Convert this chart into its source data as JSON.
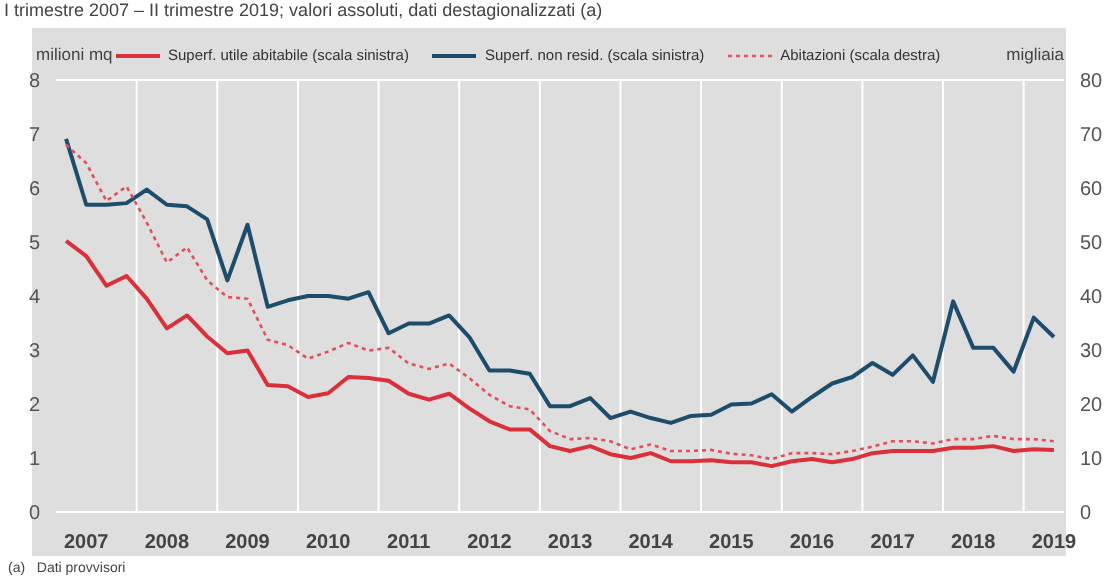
{
  "chart_data": {
    "type": "line",
    "subtitle": "I trimestre 2007 – II trimestre 2019; valori assoluti, dati destagionalizzati (a)",
    "ylabel": "milioni mq",
    "y2label": "migliaia",
    "annotations": [
      "(a)   Dati provvisori"
    ],
    "categories": [
      null,
      "2007",
      null,
      null,
      null,
      "2008",
      null,
      null,
      null,
      "2009",
      null,
      null,
      null,
      "2010",
      null,
      null,
      null,
      "2011",
      null,
      null,
      null,
      "2012",
      null,
      null,
      null,
      "2013",
      null,
      null,
      null,
      "2014",
      null,
      null,
      null,
      "2015",
      null,
      null,
      null,
      "2016",
      null,
      null,
      null,
      "2017",
      null,
      null,
      null,
      "2018",
      null,
      null,
      null,
      "2019"
    ],
    "series": [
      {
        "name": "Superf. utile abitabile (scala sinistra)",
        "color": "#d9303a",
        "line_style": "solid",
        "values": [
          5.02,
          4.74,
          4.19,
          4.37,
          3.95,
          3.4,
          3.64,
          3.25,
          2.94,
          2.99,
          2.35,
          2.33,
          2.13,
          2.2,
          2.5,
          2.48,
          2.43,
          2.19,
          2.08,
          2.19,
          1.92,
          1.68,
          1.53,
          1.53,
          1.22,
          1.13,
          1.22,
          1.07,
          1.0,
          1.09,
          0.94,
          0.94,
          0.96,
          0.92,
          0.92,
          0.85,
          0.94,
          0.98,
          0.92,
          0.98,
          1.09,
          1.13,
          1.13,
          1.13,
          1.19,
          1.19,
          1.22,
          1.13,
          1.16,
          1.15
        ]
      },
      {
        "name": "Superf. non resid. (scala sinistra)",
        "color": "#1e4d6b",
        "line_style": "solid",
        "values": [
          6.91,
          5.69,
          5.69,
          5.72,
          5.97,
          5.69,
          5.66,
          5.42,
          4.29,
          5.32,
          3.8,
          3.92,
          4.0,
          4.0,
          3.95,
          4.07,
          3.31,
          3.49,
          3.49,
          3.64,
          3.24,
          2.62,
          2.62,
          2.56,
          1.96,
          1.96,
          2.11,
          1.74,
          1.86,
          1.74,
          1.65,
          1.78,
          1.8,
          1.99,
          2.01,
          2.18,
          1.86,
          2.13,
          2.38,
          2.5,
          2.76,
          2.54,
          2.9,
          2.41,
          3.9,
          3.04,
          3.04,
          2.6,
          3.6,
          3.24
        ]
      },
      {
        "name": "Abitazioni (scala destra)",
        "color": "#e0505a",
        "line_style": "dotted",
        "axis": "y2",
        "values": [
          68,
          64.6,
          57.6,
          60.3,
          53.6,
          46.2,
          49,
          42.9,
          39.8,
          39.5,
          31.9,
          30.9,
          28.4,
          29.7,
          31.3,
          29.9,
          30.4,
          27.5,
          26.5,
          27.5,
          24.8,
          21.7,
          19.6,
          19,
          15,
          13.5,
          13.7,
          13.1,
          11.6,
          12.5,
          11.3,
          11.3,
          11.5,
          10.8,
          10.5,
          9.8,
          10.9,
          10.9,
          10.7,
          11.3,
          12.1,
          13.1,
          13.1,
          12.7,
          13.5,
          13.5,
          14.1,
          13.5,
          13.5,
          13.1
        ]
      }
    ],
    "ylim": [
      0,
      8
    ],
    "yticks": [
      0,
      1,
      2,
      3,
      4,
      5,
      6,
      7,
      8
    ],
    "y2lim": [
      0,
      80
    ],
    "y2ticks": [
      0,
      10,
      20,
      30,
      40,
      50,
      60,
      70,
      80
    ],
    "grid": true,
    "legend": "top",
    "marker": "none"
  }
}
